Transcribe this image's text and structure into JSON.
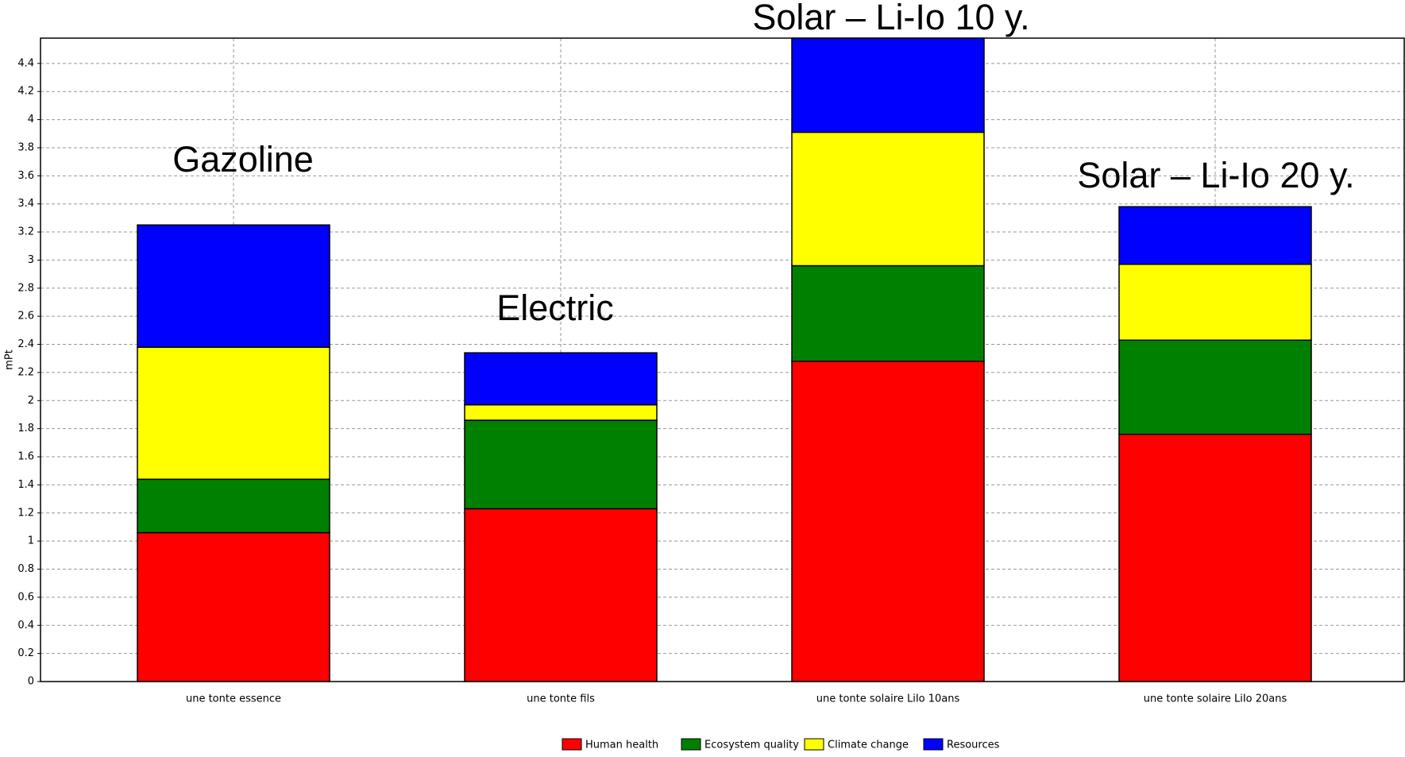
{
  "chart_data": {
    "type": "stacked_bar",
    "y_label": "mPt",
    "categories": [
      "une tonte essence",
      "une tonte fils",
      "une tonte solaire LiIo 10ans",
      "une tonte solaire LiIo 20ans"
    ],
    "series": [
      {
        "name": "Human health",
        "color": "#ff0000",
        "values": [
          1.06,
          1.23,
          2.28,
          1.76
        ]
      },
      {
        "name": "Ecosystem quality",
        "color": "#008000",
        "values": [
          0.38,
          0.63,
          0.68,
          0.67
        ]
      },
      {
        "name": "Climate change",
        "color": "#ffff00",
        "values": [
          0.94,
          0.11,
          0.95,
          0.54
        ]
      },
      {
        "name": "Resources",
        "color": "#0000ff",
        "values": [
          0.87,
          0.37,
          0.67,
          0.41
        ]
      }
    ],
    "annotations": [
      "Gazoline",
      "Electric",
      "Solar – Li-Io 10 y.",
      "Solar – Li-Io 20 y."
    ],
    "ylim": [
      0,
      4.58
    ],
    "yticks": [
      0,
      0.2,
      0.4,
      0.6,
      0.8,
      1,
      1.2,
      1.4,
      1.6,
      1.8,
      2,
      2.2,
      2.4,
      2.6,
      2.8,
      3,
      3.2,
      3.4,
      3.6,
      3.8,
      4,
      4.2,
      4.4
    ],
    "grid": true
  }
}
